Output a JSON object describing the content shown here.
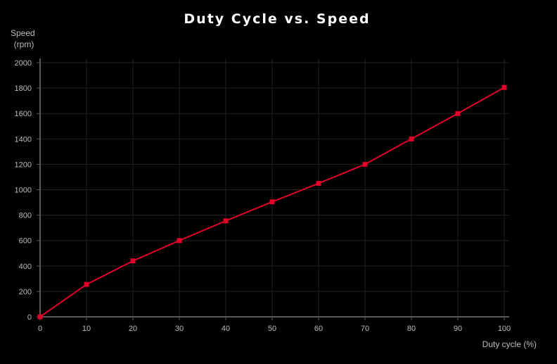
{
  "chart_data": {
    "type": "line",
    "title": "Duty Cycle vs. Speed",
    "xlabel": "Duty cycle (%)",
    "ylabel": [
      "Speed",
      "(rpm)"
    ],
    "x": [
      0,
      10,
      20,
      30,
      40,
      50,
      60,
      70,
      80,
      90,
      100
    ],
    "series": [
      {
        "values": [
          0,
          255,
          440,
          600,
          755,
          905,
          1050,
          1200,
          1400,
          1600,
          1805
        ],
        "color": "#e0002a"
      }
    ],
    "xlim": [
      0,
      100
    ],
    "ylim": [
      0,
      2000
    ],
    "xticks": [
      0,
      10,
      20,
      30,
      40,
      50,
      60,
      70,
      80,
      90,
      100
    ],
    "yticks": [
      0,
      200,
      400,
      600,
      800,
      1000,
      1200,
      1400,
      1600,
      1800,
      2000
    ],
    "grid": true,
    "legend": "none",
    "marker": "square"
  }
}
